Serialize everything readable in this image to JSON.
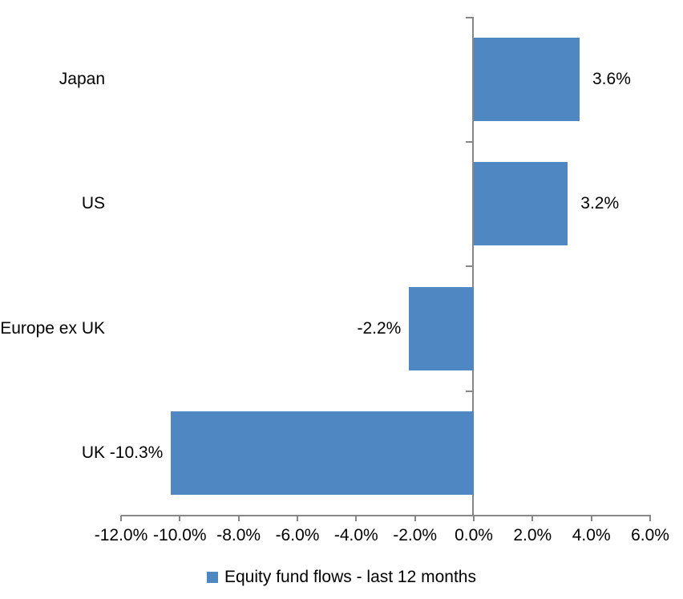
{
  "chart_data": {
    "type": "bar",
    "orientation": "horizontal",
    "categories": [
      "Japan",
      "US",
      "Europe ex UK",
      "UK"
    ],
    "values": [
      3.6,
      3.2,
      -2.2,
      -10.3
    ],
    "data_labels": [
      "3.6%",
      "3.2%",
      "-2.2%",
      "-10.3%"
    ],
    "series_name": "Equity fund flows - last 12 months",
    "xlim": [
      -12,
      6
    ],
    "x_ticks": [
      {
        "value": -12,
        "label": "-12.0%"
      },
      {
        "value": -10,
        "label": "-10.0%"
      },
      {
        "value": -8,
        "label": "-8.0%"
      },
      {
        "value": -6,
        "label": "-6.0%"
      },
      {
        "value": -4,
        "label": "-4.0%"
      },
      {
        "value": -2,
        "label": "-2.0%"
      },
      {
        "value": 0,
        "label": "0.0%"
      },
      {
        "value": 2,
        "label": "2.0%"
      },
      {
        "value": 4,
        "label": "4.0%"
      },
      {
        "value": 6,
        "label": "6.0%"
      }
    ],
    "grid": false,
    "legend_position": "bottom",
    "bar_color": "#4E87C1",
    "axis_color": "#878787",
    "text_color": "#000000"
  }
}
